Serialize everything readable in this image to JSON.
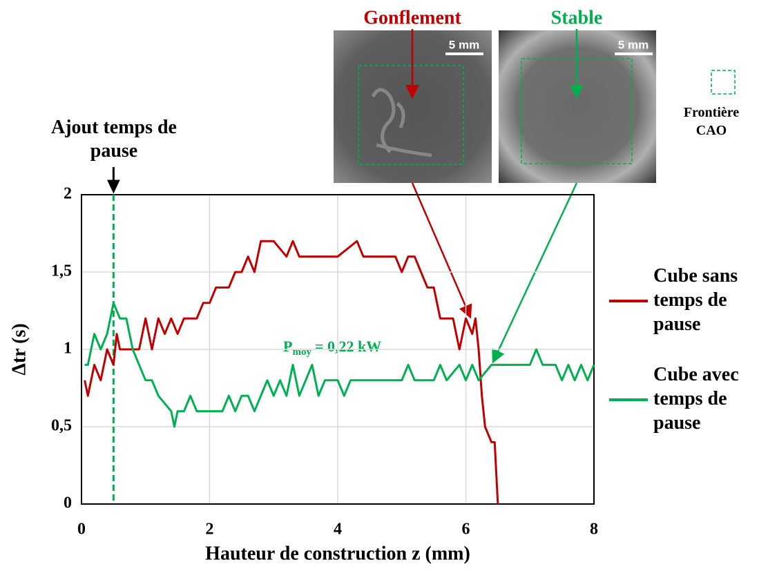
{
  "chart_data": {
    "type": "line",
    "x_label": "Hauteur de construction z (mm)",
    "y_label": "Δtr (s)",
    "xlim": [
      0,
      8
    ],
    "xticks": [
      0,
      2,
      4,
      6,
      8
    ],
    "ylim": [
      0,
      2
    ],
    "yticks": [
      0,
      {
        "value": 0.5,
        "label": "0,5"
      },
      1,
      {
        "value": 1.5,
        "label": "1,5"
      },
      2
    ],
    "grid": true,
    "series": [
      {
        "name": "Cube sans temps de pause",
        "color": "#c00000",
        "x": [
          0.05,
          0.1,
          0.2,
          0.3,
          0.4,
          0.5,
          0.55,
          0.6,
          0.9,
          1.0,
          1.1,
          1.2,
          1.3,
          1.4,
          1.5,
          1.6,
          1.8,
          1.9,
          2.0,
          2.1,
          2.3,
          2.4,
          2.5,
          2.6,
          2.7,
          2.8,
          3.0,
          3.2,
          3.3,
          3.4,
          4.0,
          4.3,
          4.4,
          4.9,
          5.0,
          5.1,
          5.2,
          5.4,
          5.5,
          5.6,
          5.8,
          5.9,
          6.0,
          6.1,
          6.15,
          6.2,
          6.25,
          6.3,
          6.4,
          6.45,
          6.5
        ],
        "values": [
          0.8,
          0.7,
          0.9,
          0.8,
          1.0,
          0.9,
          1.1,
          1.0,
          1.0,
          1.2,
          1.0,
          1.2,
          1.1,
          1.2,
          1.1,
          1.2,
          1.2,
          1.3,
          1.3,
          1.4,
          1.4,
          1.5,
          1.5,
          1.6,
          1.5,
          1.7,
          1.7,
          1.6,
          1.7,
          1.6,
          1.6,
          1.7,
          1.6,
          1.6,
          1.5,
          1.6,
          1.6,
          1.4,
          1.4,
          1.2,
          1.2,
          1.0,
          1.2,
          1.1,
          1.2,
          1.0,
          0.7,
          0.5,
          0.4,
          0.4,
          0
        ]
      },
      {
        "name": "Cube avec temps de pause",
        "color": "#00b050",
        "x": [
          0.05,
          0.1,
          0.2,
          0.3,
          0.4,
          0.5,
          0.6,
          0.7,
          0.8,
          0.9,
          1.0,
          1.1,
          1.2,
          1.4,
          1.45,
          1.5,
          1.6,
          1.7,
          1.8,
          2.2,
          2.3,
          2.4,
          2.5,
          2.6,
          2.7,
          2.8,
          2.9,
          3.0,
          3.1,
          3.2,
          3.3,
          3.4,
          3.5,
          3.6,
          3.7,
          3.8,
          4.0,
          4.1,
          4.2,
          5.0,
          5.1,
          5.2,
          5.5,
          5.6,
          5.7,
          5.9,
          6.0,
          6.1,
          6.2,
          6.4,
          7.0,
          7.1,
          7.2,
          7.4,
          7.5,
          7.6,
          7.7,
          7.8,
          7.9,
          8.0
        ],
        "values": [
          0.9,
          0.9,
          1.1,
          1.0,
          1.1,
          1.3,
          1.2,
          1.2,
          1.0,
          0.9,
          0.8,
          0.8,
          0.7,
          0.6,
          0.5,
          0.6,
          0.6,
          0.7,
          0.6,
          0.6,
          0.7,
          0.6,
          0.7,
          0.7,
          0.6,
          0.7,
          0.8,
          0.7,
          0.8,
          0.7,
          0.9,
          0.7,
          0.8,
          0.9,
          0.7,
          0.8,
          0.8,
          0.7,
          0.8,
          0.8,
          0.9,
          0.8,
          0.8,
          0.9,
          0.8,
          0.9,
          0.8,
          0.9,
          0.8,
          0.9,
          0.9,
          1.0,
          0.9,
          0.9,
          0.8,
          0.9,
          0.8,
          0.9,
          0.8,
          0.9
        ]
      }
    ],
    "pause_marker": {
      "x": 0.5,
      "label": "Ajout temps de pause"
    },
    "power_note": {
      "symbol": "P",
      "subscript": "moy",
      "text": "= 0,22 kW"
    },
    "images": [
      {
        "title": "Gonflement",
        "scale": "5 mm"
      },
      {
        "title": "Stable",
        "scale": "5 mm"
      }
    ],
    "boundary_legend": "Frontière CAO"
  }
}
